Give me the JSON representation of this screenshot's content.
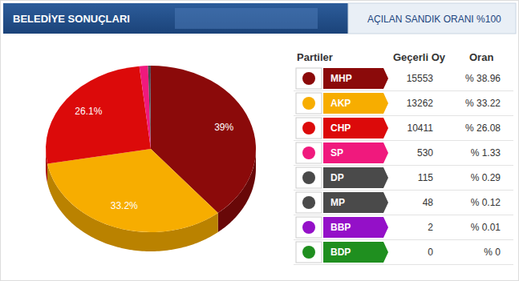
{
  "chart_data": {
    "type": "pie",
    "title": "BELEDİYE SONUÇLARI",
    "subtitle": "AÇILAN SANDIK ORANI %100",
    "categories": [
      "MHP",
      "AKP",
      "CHP",
      "SP",
      "DP",
      "MP",
      "BBP",
      "BDP"
    ],
    "values": [
      38.96,
      33.22,
      26.08,
      1.33,
      0.29,
      0.12,
      0.01,
      0
    ],
    "value_labels": [
      "39%",
      "33.2%",
      "26.1%",
      null,
      null,
      null,
      null,
      null
    ],
    "data_labels": true,
    "colors": [
      "#8b0a0a",
      "#f7ad00",
      "#dc0a0a",
      "#f0197d",
      "#4a4a4a",
      "#4a4a4a",
      "#9410c8",
      "#1f8f1f"
    ],
    "table": {
      "columns": [
        "Partiler",
        "Geçerli Oy",
        "Oran"
      ],
      "votes": [
        15553,
        13262,
        10411,
        530,
        115,
        48,
        2,
        0
      ],
      "share_labels": [
        "% 38.96",
        "% 33.22",
        "% 26.08",
        "% 1.33",
        "% 0.29",
        "% 0.12",
        "% 0.01",
        "% 0"
      ]
    }
  }
}
